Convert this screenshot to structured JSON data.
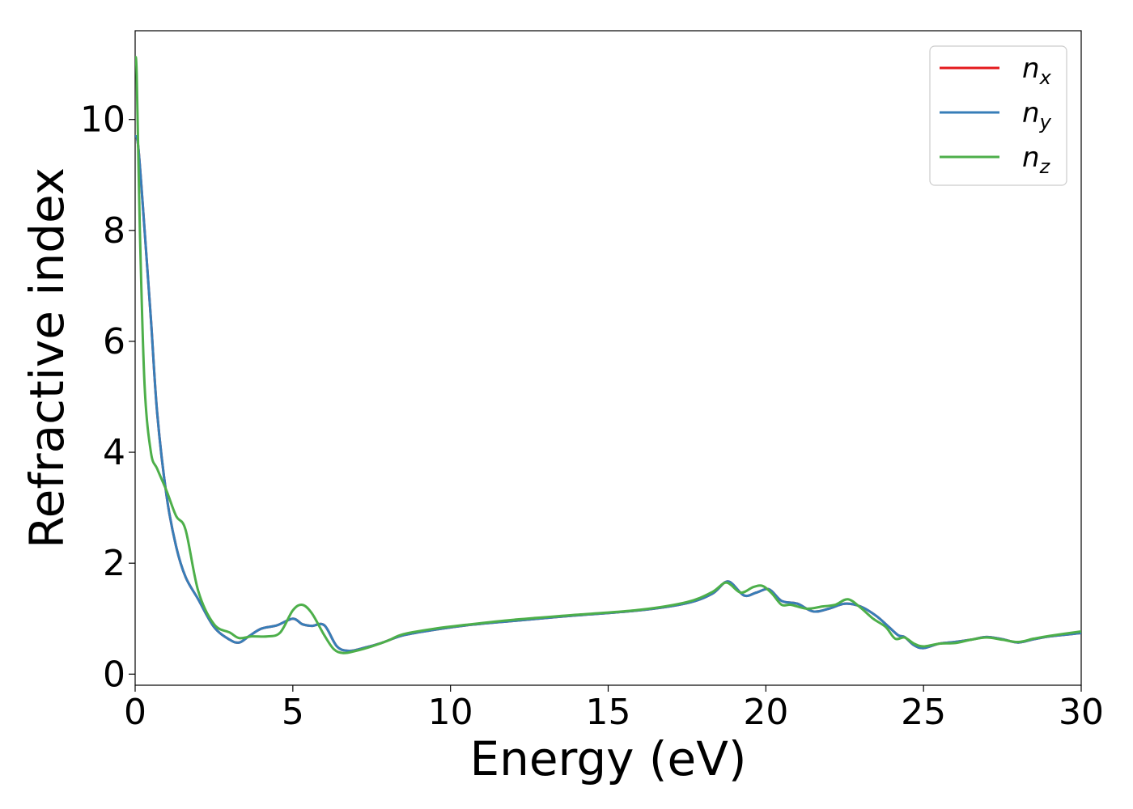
{
  "chart_data": {
    "type": "line",
    "title": "",
    "xlabel": "Energy (eV)",
    "ylabel": "Refractive index",
    "xlim": [
      0,
      30
    ],
    "ylim": [
      -0.2,
      11.6
    ],
    "xticks": [
      0,
      5,
      10,
      15,
      20,
      25,
      30
    ],
    "yticks": [
      0,
      2,
      4,
      6,
      8,
      10
    ],
    "grid": false,
    "legend_position": "top-right",
    "series": [
      {
        "name": "n_x",
        "label_base": "n",
        "label_sub": "x",
        "color": "#e41a1c",
        "x": [
          0,
          0.1,
          0.3,
          0.5,
          0.7,
          1.0,
          1.3,
          1.6,
          2.0,
          2.5,
          3.0,
          3.3,
          3.6,
          4.0,
          4.5,
          5.0,
          5.3,
          5.6,
          6.0,
          6.4,
          6.8,
          7.3,
          7.8,
          8.5,
          9.5,
          10.5,
          12,
          14,
          16,
          17.5,
          18.3,
          18.8,
          19.3,
          19.7,
          20.1,
          20.5,
          21.0,
          21.5,
          22.0,
          22.5,
          23.0,
          23.5,
          23.9,
          24.2,
          24.4,
          24.7,
          25.0,
          25.5,
          26.0,
          26.5,
          27.0,
          27.5,
          28.0,
          28.5,
          29.0,
          30.0
        ],
        "values": [
          9.7,
          9.5,
          8.0,
          6.4,
          4.7,
          3.2,
          2.3,
          1.75,
          1.35,
          0.85,
          0.62,
          0.57,
          0.68,
          0.82,
          0.88,
          1.0,
          0.9,
          0.87,
          0.88,
          0.5,
          0.42,
          0.48,
          0.56,
          0.7,
          0.8,
          0.88,
          0.96,
          1.06,
          1.15,
          1.28,
          1.45,
          1.67,
          1.42,
          1.47,
          1.53,
          1.32,
          1.27,
          1.13,
          1.18,
          1.27,
          1.22,
          1.05,
          0.85,
          0.7,
          0.67,
          0.52,
          0.47,
          0.55,
          0.58,
          0.62,
          0.67,
          0.63,
          0.57,
          0.63,
          0.68,
          0.74
        ]
      },
      {
        "name": "n_y",
        "label_base": "n",
        "label_sub": "y",
        "color": "#377eb8",
        "x": [
          0,
          0.1,
          0.3,
          0.5,
          0.7,
          1.0,
          1.3,
          1.6,
          2.0,
          2.5,
          3.0,
          3.3,
          3.6,
          4.0,
          4.5,
          5.0,
          5.3,
          5.6,
          6.0,
          6.4,
          6.8,
          7.3,
          7.8,
          8.5,
          9.5,
          10.5,
          12,
          14,
          16,
          17.5,
          18.3,
          18.8,
          19.3,
          19.7,
          20.1,
          20.5,
          21.0,
          21.5,
          22.0,
          22.5,
          23.0,
          23.5,
          23.9,
          24.2,
          24.4,
          24.7,
          25.0,
          25.5,
          26.0,
          26.5,
          27.0,
          27.5,
          28.0,
          28.5,
          29.0,
          30.0
        ],
        "values": [
          9.7,
          9.5,
          8.0,
          6.4,
          4.7,
          3.2,
          2.3,
          1.75,
          1.35,
          0.85,
          0.62,
          0.57,
          0.68,
          0.82,
          0.88,
          1.0,
          0.9,
          0.87,
          0.88,
          0.5,
          0.42,
          0.48,
          0.56,
          0.7,
          0.8,
          0.88,
          0.96,
          1.06,
          1.15,
          1.28,
          1.45,
          1.67,
          1.42,
          1.47,
          1.53,
          1.32,
          1.27,
          1.13,
          1.18,
          1.27,
          1.22,
          1.05,
          0.85,
          0.7,
          0.67,
          0.52,
          0.47,
          0.55,
          0.58,
          0.62,
          0.67,
          0.63,
          0.57,
          0.63,
          0.68,
          0.74
        ]
      },
      {
        "name": "n_z",
        "label_base": "n",
        "label_sub": "z",
        "color": "#4daf4a",
        "x": [
          0,
          0.05,
          0.15,
          0.3,
          0.5,
          0.7,
          1.0,
          1.3,
          1.6,
          2.0,
          2.5,
          3.0,
          3.3,
          3.7,
          4.2,
          4.6,
          5.0,
          5.3,
          5.6,
          6.0,
          6.3,
          6.6,
          7.0,
          7.5,
          8.0,
          8.5,
          9.5,
          10.5,
          12,
          14,
          16,
          17.5,
          18.3,
          18.75,
          19.2,
          19.6,
          19.9,
          20.2,
          20.5,
          20.8,
          21.3,
          21.8,
          22.2,
          22.6,
          23.0,
          23.4,
          23.8,
          24.1,
          24.4,
          24.7,
          25.0,
          25.5,
          26.0,
          26.5,
          27.0,
          27.5,
          28.0,
          28.5,
          29.0,
          30.0
        ],
        "values": [
          11.1,
          10.8,
          8.0,
          5.2,
          4.0,
          3.7,
          3.3,
          2.85,
          2.6,
          1.5,
          0.9,
          0.75,
          0.65,
          0.68,
          0.68,
          0.75,
          1.15,
          1.25,
          1.1,
          0.7,
          0.45,
          0.38,
          0.42,
          0.5,
          0.6,
          0.72,
          0.82,
          0.89,
          0.98,
          1.07,
          1.16,
          1.3,
          1.48,
          1.65,
          1.47,
          1.57,
          1.59,
          1.45,
          1.25,
          1.25,
          1.18,
          1.22,
          1.25,
          1.35,
          1.2,
          1.0,
          0.85,
          0.64,
          0.66,
          0.55,
          0.5,
          0.55,
          0.56,
          0.62,
          0.66,
          0.62,
          0.58,
          0.64,
          0.69,
          0.77
        ]
      }
    ]
  }
}
